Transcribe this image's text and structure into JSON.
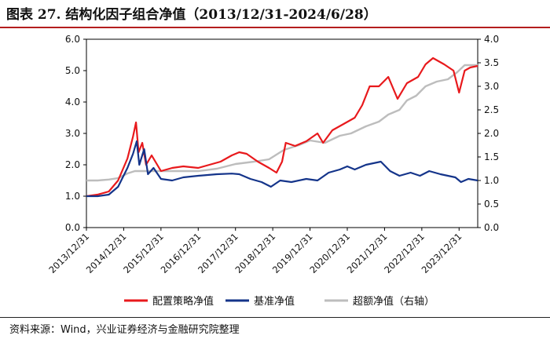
{
  "figure": {
    "title": "图表 27.    结构化因子组合净值（2013/12/31-2024/6/28）",
    "source": "资料来源：Wind，兴业证券经济与金融研究院整理"
  },
  "chart_data": {
    "type": "line",
    "title": "结构化因子组合净值（2013/12/31-2024/6/28）",
    "x_range": [
      "2013/12/31",
      "2024/6/28"
    ],
    "x_ticks": [
      "2013/12/31",
      "2014/12/31",
      "2015/12/31",
      "2016/12/31",
      "2017/12/31",
      "2018/12/31",
      "2019/12/31",
      "2020/12/31",
      "2021/12/31",
      "2022/12/31",
      "2023/12/31"
    ],
    "y_left": {
      "min": 0,
      "max": 6,
      "ticks": [
        "0.0",
        "1.0",
        "2.0",
        "3.0",
        "4.0",
        "5.0",
        "6.0"
      ]
    },
    "y_right": {
      "min": 0,
      "max": 4,
      "ticks": [
        "0.0",
        "0.5",
        "1.0",
        "1.5",
        "2.0",
        "2.5",
        "3.0",
        "3.5",
        "4.0"
      ]
    },
    "series": [
      {
        "name": "配置策略净值",
        "axis": "left",
        "color": "#e8191c",
        "points": [
          [
            2014.0,
            1.0
          ],
          [
            2014.3,
            1.05
          ],
          [
            2014.6,
            1.15
          ],
          [
            2014.85,
            1.5
          ],
          [
            2015.1,
            2.2
          ],
          [
            2015.25,
            2.9
          ],
          [
            2015.33,
            3.35
          ],
          [
            2015.4,
            2.4
          ],
          [
            2015.5,
            2.7
          ],
          [
            2015.6,
            2.0
          ],
          [
            2015.75,
            2.3
          ],
          [
            2016.0,
            1.8
          ],
          [
            2016.3,
            1.9
          ],
          [
            2016.6,
            1.95
          ],
          [
            2017.0,
            1.9
          ],
          [
            2017.3,
            2.0
          ],
          [
            2017.6,
            2.1
          ],
          [
            2017.9,
            2.3
          ],
          [
            2018.1,
            2.4
          ],
          [
            2018.3,
            2.35
          ],
          [
            2018.6,
            2.1
          ],
          [
            2018.9,
            1.9
          ],
          [
            2019.1,
            1.75
          ],
          [
            2019.25,
            2.1
          ],
          [
            2019.35,
            2.7
          ],
          [
            2019.6,
            2.6
          ],
          [
            2019.9,
            2.75
          ],
          [
            2020.2,
            3.0
          ],
          [
            2020.35,
            2.7
          ],
          [
            2020.6,
            3.1
          ],
          [
            2020.9,
            3.3
          ],
          [
            2021.2,
            3.5
          ],
          [
            2021.4,
            3.9
          ],
          [
            2021.6,
            4.5
          ],
          [
            2021.85,
            4.5
          ],
          [
            2022.1,
            4.8
          ],
          [
            2022.35,
            4.1
          ],
          [
            2022.6,
            4.6
          ],
          [
            2022.9,
            4.8
          ],
          [
            2023.1,
            5.2
          ],
          [
            2023.3,
            5.4
          ],
          [
            2023.6,
            5.2
          ],
          [
            2023.85,
            5.0
          ],
          [
            2024.0,
            4.3
          ],
          [
            2024.15,
            5.0
          ],
          [
            2024.3,
            5.1
          ],
          [
            2024.5,
            5.15
          ]
        ]
      },
      {
        "name": "基准净值",
        "axis": "left",
        "color": "#14348a",
        "points": [
          [
            2014.0,
            1.0
          ],
          [
            2014.3,
            1.0
          ],
          [
            2014.6,
            1.05
          ],
          [
            2014.85,
            1.3
          ],
          [
            2015.1,
            1.9
          ],
          [
            2015.25,
            2.35
          ],
          [
            2015.35,
            2.75
          ],
          [
            2015.42,
            2.0
          ],
          [
            2015.55,
            2.5
          ],
          [
            2015.65,
            1.7
          ],
          [
            2015.8,
            1.9
          ],
          [
            2016.0,
            1.55
          ],
          [
            2016.3,
            1.5
          ],
          [
            2016.6,
            1.6
          ],
          [
            2017.0,
            1.65
          ],
          [
            2017.5,
            1.7
          ],
          [
            2017.9,
            1.72
          ],
          [
            2018.1,
            1.7
          ],
          [
            2018.4,
            1.55
          ],
          [
            2018.7,
            1.45
          ],
          [
            2018.95,
            1.3
          ],
          [
            2019.2,
            1.5
          ],
          [
            2019.5,
            1.45
          ],
          [
            2019.9,
            1.55
          ],
          [
            2020.2,
            1.5
          ],
          [
            2020.5,
            1.75
          ],
          [
            2020.8,
            1.85
          ],
          [
            2021.0,
            1.95
          ],
          [
            2021.2,
            1.85
          ],
          [
            2021.5,
            2.0
          ],
          [
            2021.9,
            2.1
          ],
          [
            2022.15,
            1.8
          ],
          [
            2022.4,
            1.65
          ],
          [
            2022.7,
            1.75
          ],
          [
            2022.95,
            1.65
          ],
          [
            2023.2,
            1.8
          ],
          [
            2023.5,
            1.7
          ],
          [
            2023.9,
            1.6
          ],
          [
            2024.05,
            1.45
          ],
          [
            2024.25,
            1.55
          ],
          [
            2024.5,
            1.5
          ]
        ]
      },
      {
        "name": "超额净值（右轴）",
        "axis": "right",
        "color": "#bdbdbd",
        "points": [
          [
            2014.0,
            1.0
          ],
          [
            2014.3,
            1.0
          ],
          [
            2014.6,
            1.02
          ],
          [
            2014.85,
            1.05
          ],
          [
            2015.1,
            1.15
          ],
          [
            2015.3,
            1.2
          ],
          [
            2015.6,
            1.2
          ],
          [
            2016.0,
            1.2
          ],
          [
            2016.5,
            1.2
          ],
          [
            2017.0,
            1.2
          ],
          [
            2017.5,
            1.25
          ],
          [
            2018.0,
            1.35
          ],
          [
            2018.5,
            1.4
          ],
          [
            2018.9,
            1.45
          ],
          [
            2019.3,
            1.65
          ],
          [
            2019.7,
            1.75
          ],
          [
            2020.0,
            1.85
          ],
          [
            2020.4,
            1.8
          ],
          [
            2020.8,
            1.95
          ],
          [
            2021.1,
            2.0
          ],
          [
            2021.5,
            2.15
          ],
          [
            2021.85,
            2.25
          ],
          [
            2022.1,
            2.4
          ],
          [
            2022.4,
            2.5
          ],
          [
            2022.6,
            2.7
          ],
          [
            2022.85,
            2.8
          ],
          [
            2023.1,
            3.0
          ],
          [
            2023.4,
            3.1
          ],
          [
            2023.7,
            3.15
          ],
          [
            2023.95,
            3.3
          ],
          [
            2024.15,
            3.45
          ],
          [
            2024.5,
            3.45
          ]
        ]
      }
    ],
    "legend": [
      "配置策略净值",
      "基准净值",
      "超额净值（右轴）"
    ],
    "legend_position": "bottom"
  }
}
